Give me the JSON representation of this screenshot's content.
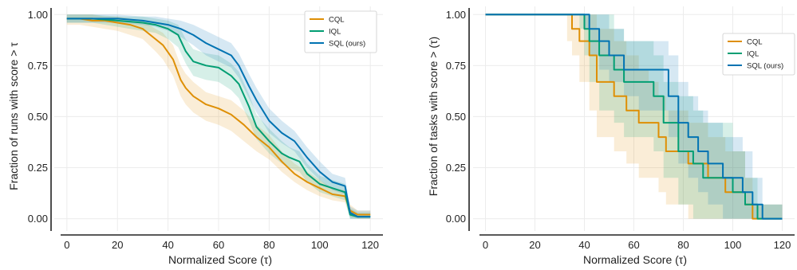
{
  "chart_data": [
    {
      "type": "line",
      "xlabel": "Normalized Score (τ)",
      "ylabel": "Fraction of runs with score > τ",
      "xlim": [
        -5,
        125
      ],
      "ylim": [
        -0.06,
        1.04
      ],
      "xticks": [
        0,
        20,
        40,
        60,
        80,
        100,
        120
      ],
      "yticks": [
        "0.00",
        "0.25",
        "0.50",
        "0.75",
        "1.00"
      ],
      "grid": true,
      "legend_position": "top-right",
      "series": [
        {
          "name": "CQL",
          "color": "#DE8F05",
          "x": [
            0,
            5,
            10,
            15,
            20,
            25,
            30,
            35,
            38,
            42,
            45,
            47,
            50,
            55,
            60,
            65,
            70,
            75,
            80,
            85,
            90,
            95,
            100,
            105,
            110,
            112,
            115,
            120
          ],
          "y": [
            0.98,
            0.98,
            0.97,
            0.97,
            0.96,
            0.95,
            0.93,
            0.88,
            0.85,
            0.78,
            0.68,
            0.64,
            0.6,
            0.56,
            0.54,
            0.51,
            0.46,
            0.4,
            0.35,
            0.28,
            0.22,
            0.18,
            0.15,
            0.12,
            0.11,
            0.04,
            0.02,
            0.02
          ],
          "lower": [
            0.95,
            0.95,
            0.94,
            0.93,
            0.92,
            0.9,
            0.88,
            0.82,
            0.78,
            0.7,
            0.6,
            0.56,
            0.52,
            0.48,
            0.46,
            0.43,
            0.38,
            0.33,
            0.29,
            0.23,
            0.18,
            0.14,
            0.11,
            0.09,
            0.08,
            0.01,
            0.0,
            0.0
          ],
          "upper": [
            1.0,
            1.0,
            1.0,
            0.99,
            0.99,
            0.98,
            0.97,
            0.93,
            0.91,
            0.85,
            0.75,
            0.71,
            0.67,
            0.62,
            0.6,
            0.58,
            0.53,
            0.46,
            0.41,
            0.33,
            0.27,
            0.23,
            0.19,
            0.15,
            0.14,
            0.07,
            0.04,
            0.04
          ]
        },
        {
          "name": "IQL",
          "color": "#029E73",
          "x": [
            0,
            10,
            20,
            30,
            35,
            40,
            44,
            47,
            50,
            55,
            60,
            65,
            68,
            72,
            75,
            80,
            85,
            88,
            92,
            95,
            100,
            105,
            110,
            112,
            115,
            120
          ],
          "y": [
            0.98,
            0.98,
            0.97,
            0.96,
            0.95,
            0.93,
            0.9,
            0.82,
            0.77,
            0.75,
            0.74,
            0.7,
            0.66,
            0.55,
            0.45,
            0.38,
            0.32,
            0.3,
            0.28,
            0.22,
            0.17,
            0.15,
            0.13,
            0.02,
            0.01,
            0.01
          ],
          "lower": [
            0.96,
            0.96,
            0.94,
            0.92,
            0.91,
            0.88,
            0.84,
            0.76,
            0.7,
            0.68,
            0.67,
            0.63,
            0.59,
            0.48,
            0.39,
            0.32,
            0.27,
            0.25,
            0.23,
            0.18,
            0.13,
            0.11,
            0.09,
            0.0,
            0.0,
            0.0
          ],
          "upper": [
            1.0,
            1.0,
            0.99,
            0.99,
            0.98,
            0.97,
            0.95,
            0.88,
            0.83,
            0.81,
            0.8,
            0.76,
            0.72,
            0.61,
            0.51,
            0.44,
            0.38,
            0.35,
            0.33,
            0.27,
            0.21,
            0.19,
            0.17,
            0.05,
            0.03,
            0.03
          ]
        },
        {
          "name": "SQL (ours)",
          "color": "#0173B2",
          "x": [
            0,
            10,
            20,
            30,
            35,
            40,
            45,
            50,
            55,
            60,
            65,
            68,
            72,
            75,
            80,
            85,
            90,
            95,
            100,
            105,
            110,
            112,
            115,
            120
          ],
          "y": [
            0.98,
            0.98,
            0.98,
            0.97,
            0.96,
            0.95,
            0.93,
            0.9,
            0.86,
            0.83,
            0.8,
            0.75,
            0.65,
            0.58,
            0.48,
            0.42,
            0.38,
            0.3,
            0.23,
            0.18,
            0.16,
            0.03,
            0.01,
            0.01
          ],
          "lower": [
            0.96,
            0.96,
            0.96,
            0.95,
            0.94,
            0.92,
            0.89,
            0.85,
            0.8,
            0.77,
            0.74,
            0.69,
            0.59,
            0.52,
            0.42,
            0.37,
            0.33,
            0.25,
            0.19,
            0.14,
            0.12,
            0.0,
            0.0,
            0.0
          ],
          "upper": [
            1.0,
            1.0,
            1.0,
            0.99,
            0.99,
            0.98,
            0.97,
            0.95,
            0.92,
            0.89,
            0.86,
            0.81,
            0.71,
            0.64,
            0.54,
            0.48,
            0.43,
            0.35,
            0.28,
            0.22,
            0.2,
            0.06,
            0.04,
            0.04
          ]
        }
      ]
    },
    {
      "type": "line",
      "xlabel": "Normalized Score (τ)",
      "ylabel": "Fraction of tasks with score > (τ)",
      "xlim": [
        -5,
        125
      ],
      "ylim": [
        -0.06,
        1.04
      ],
      "xticks": [
        0,
        20,
        40,
        60,
        80,
        100,
        120
      ],
      "yticks": [
        "0.00",
        "0.25",
        "0.50",
        "0.75",
        "1.00"
      ],
      "grid": true,
      "legend_position": "top-right",
      "series": [
        {
          "name": "CQL",
          "color": "#DE8F05",
          "x": [
            0,
            33,
            35,
            38,
            42,
            45,
            52,
            57,
            62,
            66,
            70,
            73,
            78,
            82,
            86,
            90,
            97,
            102,
            105,
            108,
            120
          ],
          "y": [
            1.0,
            1.0,
            0.93,
            0.87,
            0.8,
            0.67,
            0.6,
            0.53,
            0.47,
            0.47,
            0.4,
            0.33,
            0.33,
            0.27,
            0.27,
            0.2,
            0.13,
            0.13,
            0.07,
            0.0,
            0.0
          ],
          "lower": [
            1.0,
            0.87,
            0.8,
            0.67,
            0.53,
            0.4,
            0.33,
            0.27,
            0.2,
            0.2,
            0.13,
            0.07,
            0.07,
            0.0,
            0.0,
            0.0,
            0.0,
            0.0,
            0.0,
            0.0,
            0.0
          ],
          "upper": [
            1.0,
            1.0,
            1.0,
            1.0,
            1.0,
            0.93,
            0.87,
            0.8,
            0.73,
            0.67,
            0.6,
            0.53,
            0.53,
            0.47,
            0.47,
            0.4,
            0.33,
            0.33,
            0.2,
            0.07,
            0.0
          ]
        },
        {
          "name": "IQL",
          "color": "#029E73",
          "x": [
            0,
            38,
            40,
            42,
            46,
            52,
            56,
            62,
            68,
            72,
            78,
            84,
            88,
            94,
            100,
            105,
            110,
            120
          ],
          "y": [
            1.0,
            1.0,
            0.93,
            0.87,
            0.8,
            0.73,
            0.67,
            0.67,
            0.6,
            0.47,
            0.33,
            0.27,
            0.2,
            0.2,
            0.13,
            0.07,
            0.0,
            0.0
          ],
          "lower": [
            1.0,
            0.93,
            0.8,
            0.67,
            0.53,
            0.47,
            0.4,
            0.4,
            0.33,
            0.2,
            0.07,
            0.0,
            0.0,
            0.0,
            0.0,
            0.0,
            0.0,
            0.0
          ],
          "upper": [
            1.0,
            1.0,
            1.0,
            1.0,
            1.0,
            0.93,
            0.87,
            0.87,
            0.8,
            0.67,
            0.6,
            0.53,
            0.47,
            0.47,
            0.33,
            0.2,
            0.07,
            0.0
          ]
        },
        {
          "name": "SQL (ours)",
          "color": "#0173B2",
          "x": [
            0,
            40,
            42,
            46,
            50,
            56,
            62,
            70,
            74,
            78,
            82,
            86,
            90,
            96,
            104,
            108,
            112,
            120
          ],
          "y": [
            1.0,
            1.0,
            0.93,
            0.87,
            0.8,
            0.73,
            0.73,
            0.73,
            0.6,
            0.47,
            0.4,
            0.33,
            0.27,
            0.2,
            0.13,
            0.07,
            0.0,
            0.0
          ],
          "lower": [
            1.0,
            0.93,
            0.8,
            0.73,
            0.67,
            0.6,
            0.53,
            0.53,
            0.4,
            0.27,
            0.2,
            0.13,
            0.07,
            0.0,
            0.0,
            0.0,
            0.0,
            0.0
          ],
          "upper": [
            1.0,
            1.0,
            1.0,
            1.0,
            0.93,
            0.87,
            0.87,
            0.87,
            0.8,
            0.67,
            0.6,
            0.53,
            0.47,
            0.4,
            0.33,
            0.2,
            0.07,
            0.0
          ]
        }
      ]
    }
  ]
}
